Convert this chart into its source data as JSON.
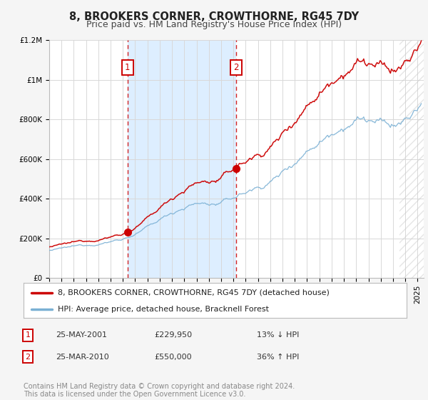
{
  "title": "8, BROOKERS CORNER, CROWTHORNE, RG45 7DY",
  "subtitle": "Price paid vs. HM Land Registry's House Price Index (HPI)",
  "ylim": [
    0,
    1200000
  ],
  "xlim_start": 1995.0,
  "xlim_end": 2025.5,
  "yticks": [
    0,
    200000,
    400000,
    600000,
    800000,
    1000000,
    1200000
  ],
  "ytick_labels": [
    "£0",
    "£200K",
    "£400K",
    "£600K",
    "£800K",
    "£1M",
    "£1.2M"
  ],
  "background_color": "#f5f5f5",
  "plot_bg_color": "#ffffff",
  "grid_color": "#d8d8d8",
  "shade_start": 2001.38,
  "shade_end": 2010.23,
  "shade_color": "#ddeeff",
  "vline1_x": 2001.38,
  "vline2_x": 2010.23,
  "vline_color": "#cc0000",
  "marker1_x": 2001.38,
  "marker1_y": 229950,
  "marker2_x": 2010.23,
  "marker2_y": 550000,
  "marker_color": "#cc0000",
  "marker_size": 7,
  "house_line_color": "#cc0000",
  "hpi_line_color": "#7ab0d4",
  "legend_label_house": "8, BROOKERS CORNER, CROWTHORNE, RG45 7DY (detached house)",
  "legend_label_hpi": "HPI: Average price, detached house, Bracknell Forest",
  "annotation1_label": "1",
  "annotation2_label": "2",
  "table_row1": [
    "1",
    "25-MAY-2001",
    "£229,950",
    "13% ↓ HPI"
  ],
  "table_row2": [
    "2",
    "25-MAR-2010",
    "£550,000",
    "36% ↑ HPI"
  ],
  "footnote": "Contains HM Land Registry data © Crown copyright and database right 2024.\nThis data is licensed under the Open Government Licence v3.0.",
  "title_fontsize": 10.5,
  "subtitle_fontsize": 9,
  "tick_fontsize": 7.5,
  "legend_fontsize": 8,
  "table_fontsize": 8,
  "footnote_fontsize": 7
}
